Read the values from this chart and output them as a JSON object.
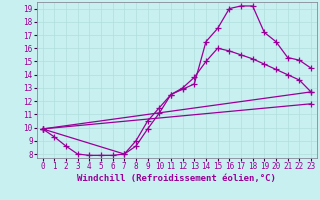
{
  "xlabel": "Windchill (Refroidissement éolien,°C)",
  "background_color": "#c8f0f0",
  "line_color": "#990099",
  "xlim": [
    -0.5,
    23.5
  ],
  "ylim": [
    7.7,
    19.5
  ],
  "xticks": [
    0,
    1,
    2,
    3,
    4,
    5,
    6,
    7,
    8,
    9,
    10,
    11,
    12,
    13,
    14,
    15,
    16,
    17,
    18,
    19,
    20,
    21,
    22,
    23
  ],
  "yticks": [
    8,
    9,
    10,
    11,
    12,
    13,
    14,
    15,
    16,
    17,
    18,
    19
  ],
  "line1_x": [
    0,
    1,
    2,
    3,
    4,
    5,
    6,
    7,
    8,
    9,
    10,
    11,
    12,
    13,
    14,
    15,
    16,
    17,
    18,
    19,
    20,
    21,
    22,
    23
  ],
  "line1_y": [
    9.9,
    9.3,
    8.6,
    8.0,
    7.9,
    7.9,
    7.9,
    8.0,
    8.6,
    9.9,
    11.1,
    12.5,
    12.9,
    13.3,
    16.5,
    17.5,
    19.0,
    19.2,
    19.2,
    17.2,
    16.5,
    15.3,
    15.1,
    14.5
  ],
  "line2_x": [
    0,
    7,
    8,
    9,
    10,
    11,
    12,
    13,
    14,
    15,
    16,
    17,
    18,
    19,
    20,
    21,
    22,
    23
  ],
  "line2_y": [
    9.9,
    8.0,
    9.0,
    10.5,
    11.5,
    12.5,
    13.0,
    13.8,
    15.0,
    16.0,
    15.8,
    15.5,
    15.2,
    14.8,
    14.4,
    14.0,
    13.6,
    12.7
  ],
  "line3_x": [
    0,
    23
  ],
  "line3_y": [
    9.9,
    12.7
  ],
  "line4_x": [
    0,
    23
  ],
  "line4_y": [
    9.9,
    11.8
  ],
  "grid_color": "#b0dede",
  "marker": "+",
  "markersize": 4,
  "linewidth": 0.9,
  "xlabel_fontsize": 6.5,
  "tick_fontsize": 5.5
}
